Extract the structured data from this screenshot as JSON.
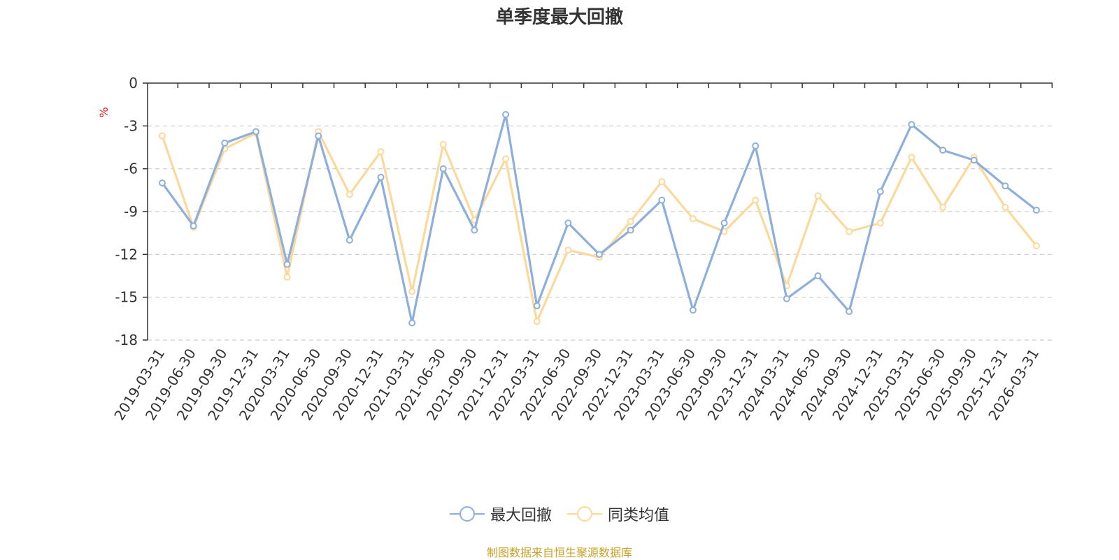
{
  "chart_data": {
    "type": "line",
    "title": "单季度最大回撤",
    "ylabel": "%",
    "ylim": [
      -18,
      0
    ],
    "yticks": [
      0,
      -3,
      -6,
      -9,
      -12,
      -15,
      -18
    ],
    "grid": true,
    "legend_position": "bottom",
    "categories": [
      "2019-03-31",
      "2019-06-30",
      "2019-09-30",
      "2019-12-31",
      "2020-03-31",
      "2020-06-30",
      "2020-09-30",
      "2020-12-31",
      "2021-03-31",
      "2021-06-30",
      "2021-09-30",
      "2021-12-31",
      "2022-03-31",
      "2022-06-30",
      "2022-09-30",
      "2022-12-31",
      "2023-03-31",
      "2023-06-30",
      "2023-09-30",
      "2023-12-31",
      "2024-03-31",
      "2024-06-30",
      "2024-09-30",
      "2024-12-31",
      "2025-03-31",
      "2025-06-30",
      "2025-09-30",
      "2025-12-31",
      "2026-03-31"
    ],
    "series": [
      {
        "name": "最大回撤",
        "color": "#8eaedb",
        "values": [
          -7.0,
          -10.0,
          -4.2,
          -3.4,
          -12.7,
          -3.7,
          -11.0,
          -6.6,
          -16.8,
          -6.0,
          -10.3,
          -2.2,
          -15.6,
          -9.8,
          -12.0,
          -10.3,
          -8.2,
          -15.9,
          -9.8,
          -4.4,
          -15.1,
          -13.5,
          -16.0,
          -7.6,
          -2.9,
          -4.7,
          -5.4,
          -7.2,
          -8.9
        ]
      },
      {
        "name": "同类均值",
        "color": "#fbd99b",
        "values": [
          -3.7,
          -10.1,
          -4.6,
          -3.5,
          -13.6,
          -3.4,
          -7.8,
          -4.8,
          -14.6,
          -4.3,
          -9.6,
          -5.3,
          -16.7,
          -11.7,
          -12.2,
          -9.7,
          -6.9,
          -9.5,
          -10.4,
          -8.2,
          -14.2,
          -7.9,
          -10.4,
          -9.8,
          -5.2,
          -8.7,
          -5.2,
          -8.7,
          -11.4
        ]
      }
    ]
  },
  "source_note": "制图数据来自恒生聚源数据库"
}
